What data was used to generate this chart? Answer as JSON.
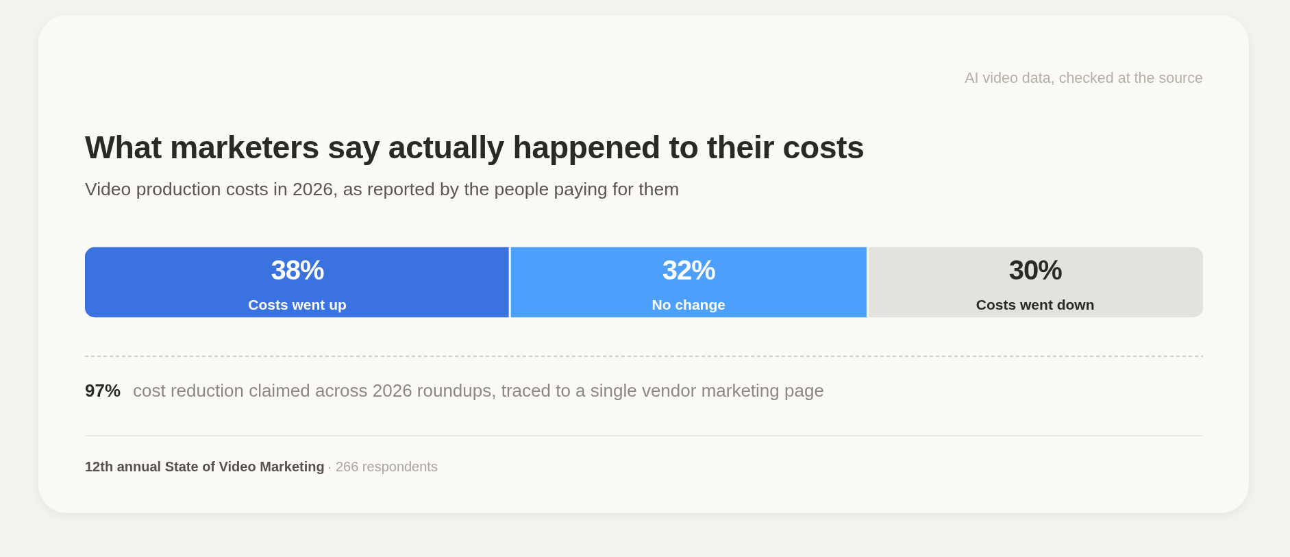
{
  "chart_data": {
    "type": "bar",
    "orientation": "horizontal",
    "stacked": true,
    "title": "What marketers say actually happened to their costs",
    "subtitle": "Video production costs in 2026, as reported by the people paying for them",
    "categories": [
      null
    ],
    "series": [
      {
        "name": "Costs went up",
        "color": "#3a72e0",
        "values": [
          38
        ],
        "value_labels": [
          "38%"
        ]
      },
      {
        "name": "No change",
        "color": "#4c9ffb",
        "values": [
          32
        ],
        "value_labels": [
          "32%"
        ]
      },
      {
        "name": "Costs went down",
        "color": "#e3e3de",
        "values": [
          30
        ],
        "value_labels": [
          "30%"
        ]
      }
    ],
    "annotations": [
      "AI video data, checked at the source",
      "97%",
      "cost reduction claimed across 2026 roundups, traced to a single vendor marketing page",
      "12th annual State of Video Marketing",
      "· 266 respondents"
    ]
  }
}
